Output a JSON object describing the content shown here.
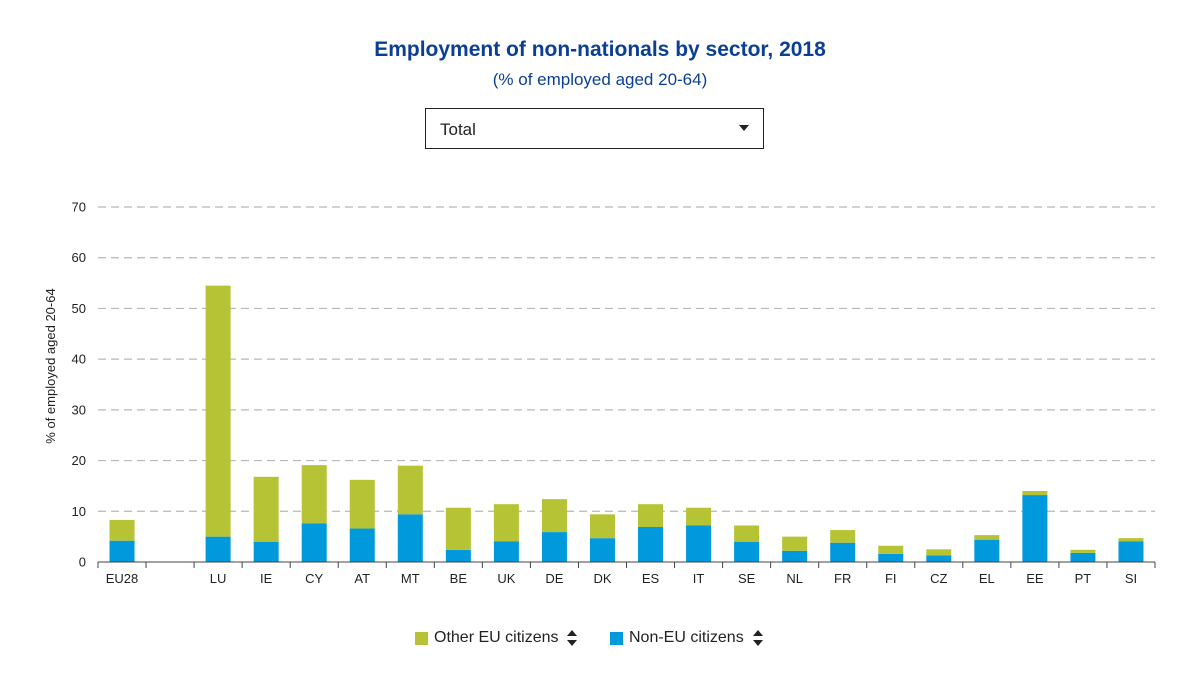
{
  "header": {
    "title": "Employment of non-nationals by sector, 2018",
    "subtitle": "(% of employed aged 20-64)"
  },
  "filter": {
    "selected": "Total"
  },
  "legend": {
    "items": [
      {
        "label": "Other EU citizens",
        "color": "#b5c334",
        "icon": "sort-icon"
      },
      {
        "label": "Non-EU citizens",
        "color": "#0099dc",
        "icon": "sort-icon"
      }
    ]
  },
  "chart_data": {
    "type": "bar",
    "stacked": true,
    "categories": [
      "EU28",
      "",
      "LU",
      "IE",
      "CY",
      "AT",
      "MT",
      "BE",
      "UK",
      "DE",
      "DK",
      "ES",
      "IT",
      "SE",
      "NL",
      "FR",
      "FI",
      "CZ",
      "EL",
      "EE",
      "PT",
      "SI"
    ],
    "series": [
      {
        "name": "Non-EU citizens",
        "color": "#0099dc",
        "values": [
          4.2,
          null,
          5.0,
          4.0,
          7.6,
          6.6,
          9.4,
          2.4,
          4.1,
          5.9,
          4.7,
          6.9,
          7.2,
          4.0,
          2.2,
          3.8,
          1.6,
          1.3,
          4.4,
          13.2,
          1.8,
          4.1
        ]
      },
      {
        "name": "Other EU citizens",
        "color": "#b5c334",
        "values": [
          4.1,
          null,
          49.5,
          12.8,
          11.5,
          9.6,
          9.6,
          8.3,
          7.3,
          6.5,
          4.7,
          4.5,
          3.5,
          3.2,
          2.8,
          2.5,
          1.6,
          1.2,
          0.9,
          0.8,
          0.6,
          0.6
        ]
      }
    ],
    "ylabel": "% of employed aged 20-64",
    "xlabel": "",
    "ylim": [
      0,
      70
    ],
    "yticks": [
      0,
      10,
      20,
      30,
      40,
      50,
      60,
      70
    ],
    "grid": true,
    "legend_position": "bottom-center"
  }
}
